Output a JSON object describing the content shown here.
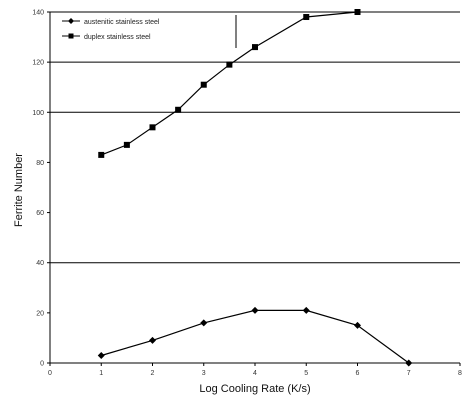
{
  "chart_data": {
    "type": "line",
    "title": "",
    "xlabel": "Log Cooling Rate (K/s)",
    "ylabel": "Ferrite Number",
    "xlim": [
      0,
      8
    ],
    "ylim": [
      0,
      140
    ],
    "x_ticks": [
      "0",
      "1",
      "2",
      "3",
      "4",
      "5",
      "6",
      "7",
      "8"
    ],
    "y_ticks": [
      "0",
      "20",
      "40",
      "60",
      "80",
      "100",
      "120",
      "140"
    ],
    "grid": {
      "horizontal_at": [
        40,
        100,
        120
      ],
      "vertical": false
    },
    "legend": {
      "position": "top-left"
    },
    "series": [
      {
        "name": "austenitic stainless steel",
        "marker": "diamond",
        "x": [
          1,
          2,
          3,
          4,
          5,
          6,
          7
        ],
        "y": [
          3,
          9,
          16,
          21,
          21,
          15,
          0
        ]
      },
      {
        "name": "duplex stainless steel",
        "marker": "square",
        "x": [
          1,
          1.5,
          2,
          2.5,
          3,
          3.5,
          4,
          5,
          6
        ],
        "y": [
          83,
          87,
          94,
          101,
          111,
          119,
          126,
          138,
          140
        ]
      }
    ]
  }
}
